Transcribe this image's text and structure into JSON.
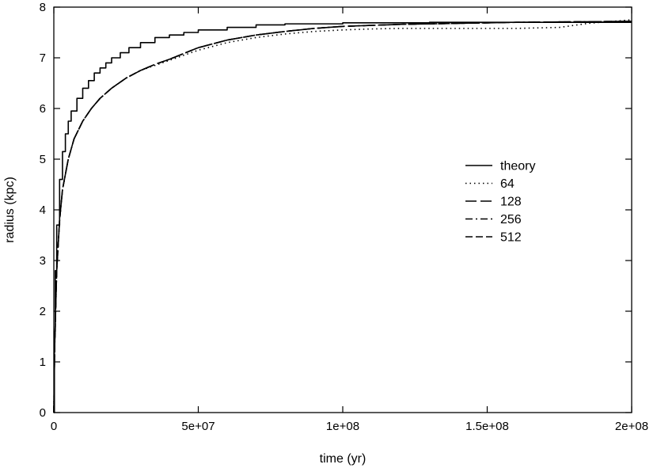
{
  "chart_data": {
    "type": "line",
    "xlabel": "time (yr)",
    "ylabel": "radius (kpc)",
    "xlim": [
      0,
      200000000
    ],
    "ylim": [
      0,
      8
    ],
    "grid": false,
    "legend_position": "right-middle",
    "x_ticks": [
      {
        "value": 0,
        "label": "0"
      },
      {
        "value": 50000000,
        "label": "5e+07"
      },
      {
        "value": 100000000,
        "label": "1e+08"
      },
      {
        "value": 150000000,
        "label": "1.5e+08"
      },
      {
        "value": 200000000,
        "label": "2e+08"
      }
    ],
    "y_ticks": [
      {
        "value": 0,
        "label": "0"
      },
      {
        "value": 1,
        "label": "1"
      },
      {
        "value": 2,
        "label": "2"
      },
      {
        "value": 3,
        "label": "3"
      },
      {
        "value": 4,
        "label": "4"
      },
      {
        "value": 5,
        "label": "5"
      },
      {
        "value": 6,
        "label": "6"
      },
      {
        "value": 7,
        "label": "7"
      },
      {
        "value": 8,
        "label": "8"
      }
    ],
    "series": [
      {
        "name": "theory",
        "dash": "solid",
        "step": true,
        "x": [
          0,
          200000,
          500000,
          1000000,
          2000000,
          3000000,
          4000000,
          5000000,
          6000000,
          8000000,
          10000000,
          12000000,
          14000000,
          16000000,
          18000000,
          20000000,
          23000000,
          26000000,
          30000000,
          35000000,
          40000000,
          45000000,
          50000000,
          60000000,
          70000000,
          80000000,
          100000000,
          130000000,
          160000000,
          200000000
        ],
        "y": [
          0,
          1.6,
          2.8,
          3.7,
          4.6,
          5.15,
          5.5,
          5.75,
          5.95,
          6.2,
          6.4,
          6.55,
          6.7,
          6.8,
          6.9,
          7.0,
          7.1,
          7.2,
          7.3,
          7.4,
          7.45,
          7.5,
          7.55,
          7.6,
          7.65,
          7.67,
          7.69,
          7.7,
          7.7,
          7.7
        ]
      },
      {
        "name": "64",
        "dash": "dotted",
        "step": false,
        "x": [
          0,
          300000,
          1000000,
          2000000,
          3000000,
          5000000,
          7000000,
          10000000,
          13000000,
          16000000,
          20000000,
          25000000,
          30000000,
          35000000,
          40000000,
          50000000,
          60000000,
          70000000,
          80000000,
          90000000,
          100000000,
          110000000,
          120000000,
          140000000,
          160000000,
          175000000,
          185000000,
          200000000
        ],
        "y": [
          0,
          1.3,
          2.8,
          3.8,
          4.4,
          5.0,
          5.4,
          5.75,
          6.0,
          6.2,
          6.4,
          6.6,
          6.75,
          6.85,
          6.95,
          7.15,
          7.3,
          7.4,
          7.47,
          7.52,
          7.55,
          7.57,
          7.58,
          7.58,
          7.58,
          7.6,
          7.68,
          7.75
        ]
      },
      {
        "name": "128",
        "dash": "long-dash",
        "step": false,
        "x": [
          0,
          300000,
          1000000,
          2000000,
          3000000,
          5000000,
          7000000,
          10000000,
          13000000,
          16000000,
          20000000,
          25000000,
          30000000,
          35000000,
          40000000,
          50000000,
          60000000,
          70000000,
          80000000,
          90000000,
          100000000,
          120000000,
          140000000,
          160000000,
          180000000,
          200000000
        ],
        "y": [
          0,
          1.3,
          2.8,
          3.8,
          4.4,
          5.0,
          5.4,
          5.75,
          6.0,
          6.2,
          6.4,
          6.6,
          6.75,
          6.87,
          6.97,
          7.2,
          7.35,
          7.45,
          7.52,
          7.58,
          7.62,
          7.66,
          7.68,
          7.7,
          7.71,
          7.72
        ]
      },
      {
        "name": "256",
        "dash": "dash-dot",
        "step": false,
        "x": [
          0,
          300000,
          1000000,
          2000000,
          3000000,
          5000000,
          7000000,
          10000000,
          13000000,
          16000000,
          20000000,
          25000000,
          30000000,
          35000000,
          40000000,
          50000000,
          60000000,
          70000000,
          80000000,
          90000000,
          100000000,
          120000000,
          140000000,
          160000000,
          180000000,
          200000000
        ],
        "y": [
          0,
          1.3,
          2.8,
          3.8,
          4.4,
          5.0,
          5.4,
          5.75,
          6.0,
          6.2,
          6.4,
          6.6,
          6.75,
          6.87,
          6.97,
          7.2,
          7.35,
          7.45,
          7.52,
          7.58,
          7.62,
          7.66,
          7.68,
          7.7,
          7.71,
          7.72
        ]
      },
      {
        "name": "512",
        "dash": "short-dash",
        "step": false,
        "x": [
          0,
          300000,
          1000000,
          2000000,
          3000000,
          5000000,
          7000000,
          10000000,
          13000000,
          16000000,
          20000000,
          25000000,
          30000000,
          35000000,
          40000000,
          50000000,
          60000000,
          70000000,
          80000000,
          90000000,
          100000000,
          120000000,
          140000000,
          160000000,
          180000000,
          200000000
        ],
        "y": [
          0,
          1.3,
          2.8,
          3.8,
          4.4,
          5.0,
          5.4,
          5.75,
          6.0,
          6.2,
          6.4,
          6.6,
          6.75,
          6.87,
          6.97,
          7.2,
          7.35,
          7.45,
          7.52,
          7.58,
          7.62,
          7.66,
          7.68,
          7.7,
          7.71,
          7.72
        ]
      }
    ]
  }
}
